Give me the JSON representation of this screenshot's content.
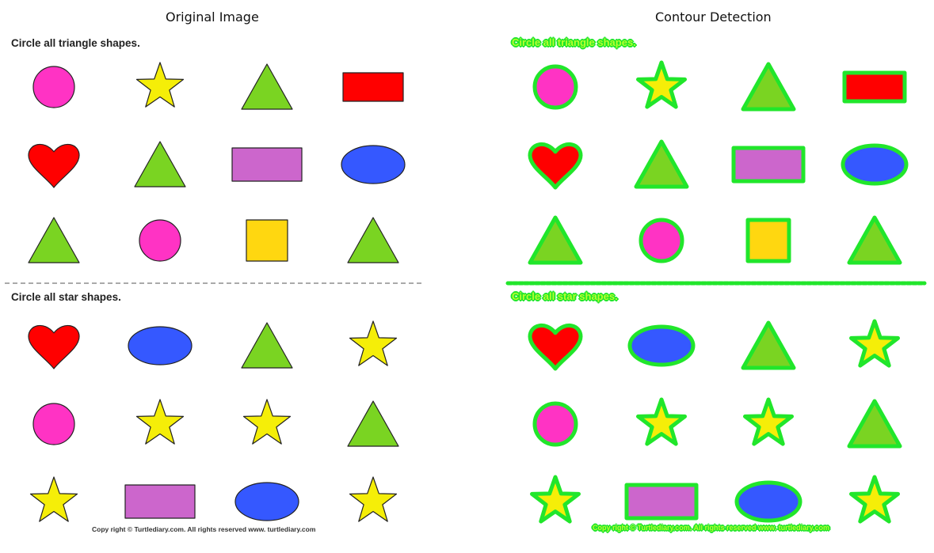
{
  "titles": {
    "left": "Original Image",
    "right": "Contour Detection"
  },
  "worksheet": {
    "top_instruction": "Circle all triangle shapes.",
    "bottom_instruction": "Circle all star shapes.",
    "copyright": "Copy right © Turtlediary.com. All rights reserved   www. turtlediary.com"
  },
  "colors": {
    "pink": "#ff33c4",
    "yellow": "#f5ee08",
    "green": "#7ad422",
    "red": "#ff0000",
    "violet": "#cc66cc",
    "blue": "#3558ff",
    "gold": "#ffd710",
    "contour": "#21e62b",
    "divider": "#aaaaaa"
  },
  "shape_grid_top": [
    [
      "circle",
      "star",
      "triangle",
      "rectangle-red"
    ],
    [
      "heart",
      "triangle",
      "rectangle-violet",
      "ellipse"
    ],
    [
      "triangle",
      "circle",
      "square",
      "triangle"
    ]
  ],
  "shape_grid_bottom": [
    [
      "heart",
      "ellipse",
      "triangle",
      "star"
    ],
    [
      "circle",
      "star",
      "star",
      "triangle"
    ],
    [
      "star",
      "rectangle-violet",
      "ellipse",
      "star"
    ]
  ]
}
